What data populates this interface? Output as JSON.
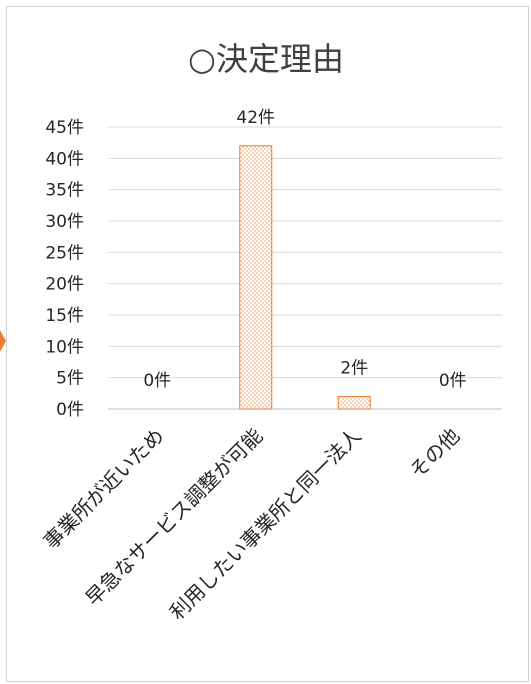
{
  "chart_data": {
    "type": "bar",
    "title": "○決定理由",
    "xlabel": "",
    "ylabel": "",
    "unit": "件",
    "categories": [
      "事業所が近いため",
      "早急なサービス調整が可能",
      "利用したい事業所と同一法人",
      "その他"
    ],
    "values": [
      0,
      42,
      2,
      0
    ],
    "data_labels": [
      "0件",
      "42件",
      "2件",
      "0件"
    ],
    "y_ticks": [
      "0件",
      "5件",
      "10件",
      "15件",
      "20件",
      "25件",
      "30件",
      "35件",
      "40件",
      "45件"
    ],
    "ylim": [
      0,
      45
    ],
    "tick_step": 5,
    "grid": true,
    "legend": "none",
    "colors": {
      "bar_border": "#ed7d31",
      "bar_dot": "#f4b183",
      "grid": "#d9d9d9",
      "text": "#262626"
    }
  }
}
